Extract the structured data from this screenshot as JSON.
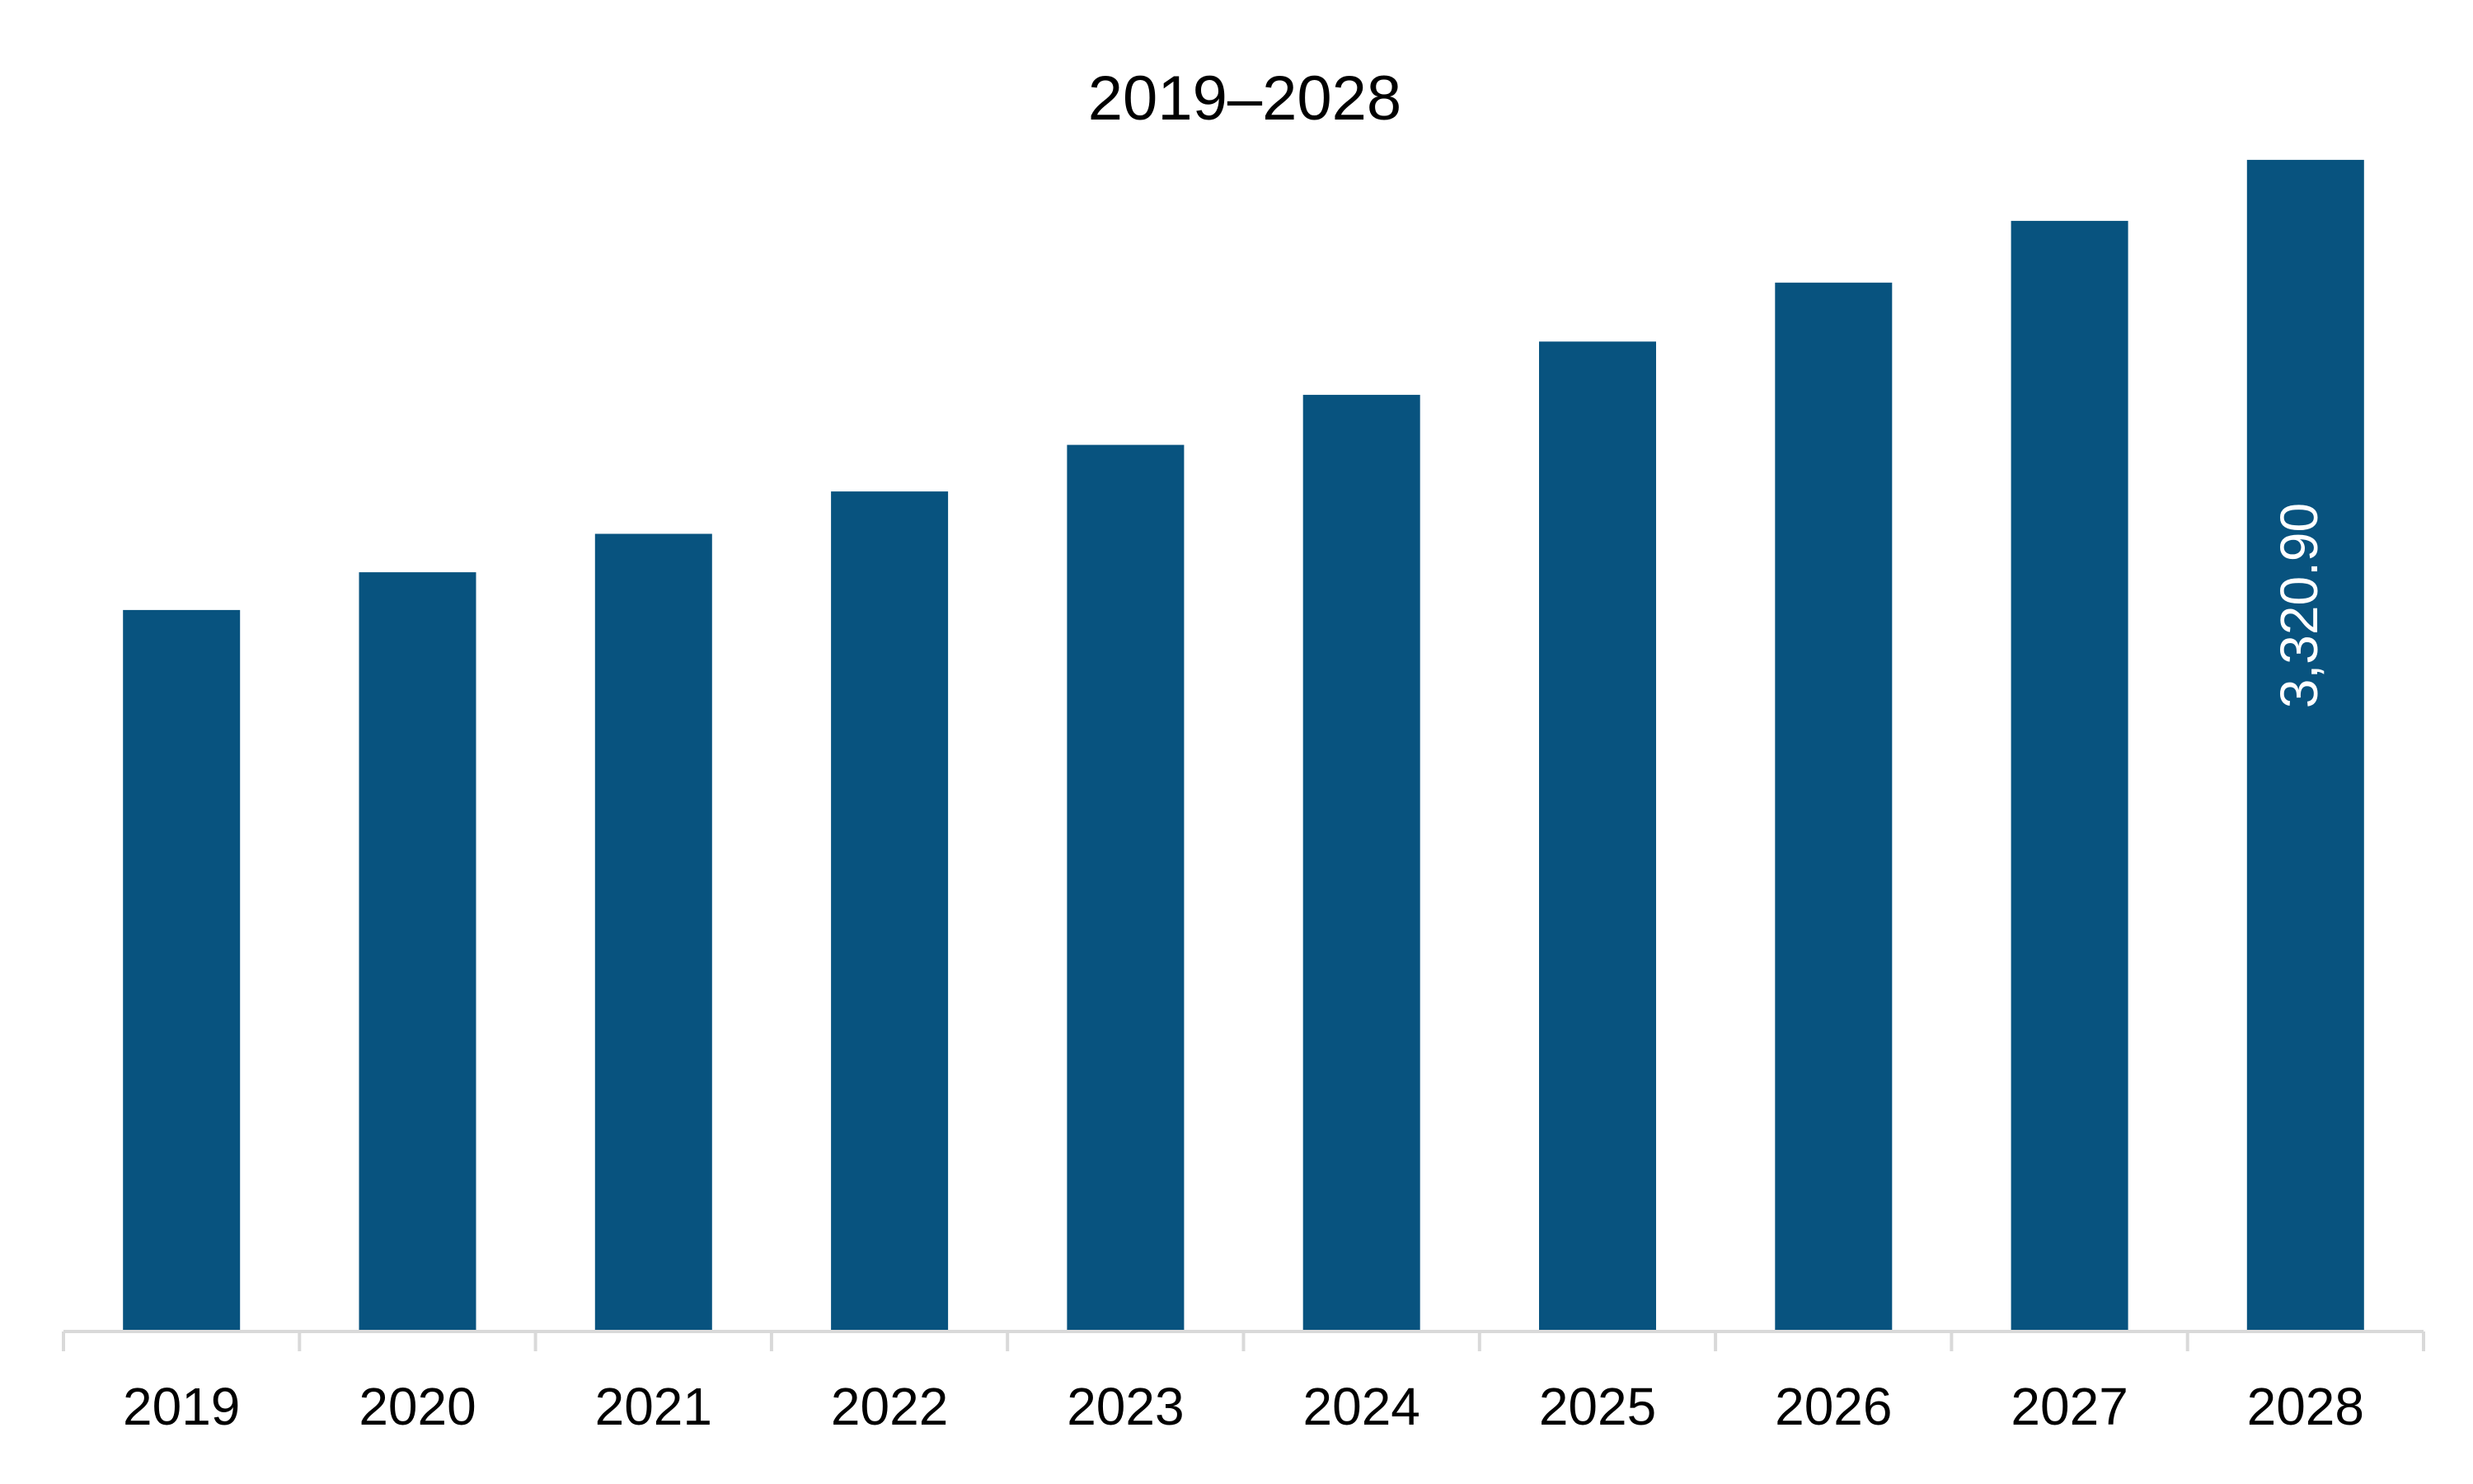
{
  "chart_data": {
    "type": "bar",
    "title": "2019–2028",
    "xlabel": "",
    "ylabel": "",
    "categories": [
      "2019",
      "2020",
      "2021",
      "2022",
      "2023",
      "2024",
      "2025",
      "2026",
      "2027",
      "2028"
    ],
    "values": [
      2045,
      2152,
      2261,
      2381,
      2513,
      2655,
      2806,
      2973,
      3148,
      3320.9
    ],
    "data_labels": [
      {
        "category": "2028",
        "text": "3,320.90"
      }
    ],
    "ylim": [
      0,
      3510
    ],
    "grid": false,
    "legend": "none",
    "bar_color": "#08537F",
    "axis_color": "#D9D9D9"
  }
}
